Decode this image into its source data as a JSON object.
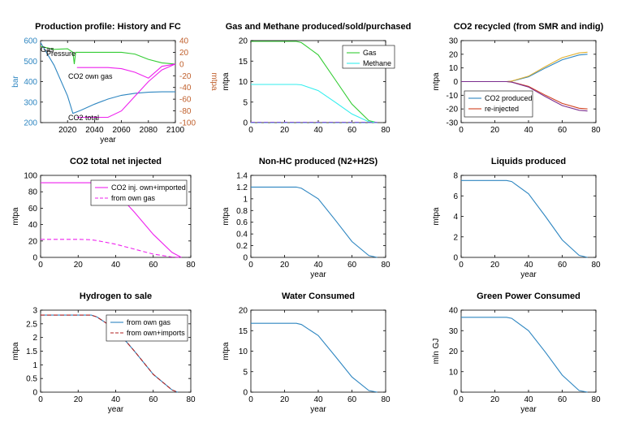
{
  "colors": {
    "blue": "#2e86c1",
    "orange": "#c0602d",
    "green": "#33cc33",
    "magenta": "#ee22ee",
    "cyan": "#33eeee",
    "gold": "#e0b030",
    "purple": "#7b2d8e",
    "red": "#d04020",
    "darkred": "#b22222"
  },
  "chart_data": [
    {
      "type": "line",
      "title": "Production profile: History and FC",
      "xlabel": "year",
      "ylabel": "bar",
      "ylabel_right": "mtpa",
      "xlim": [
        2000,
        2100
      ],
      "ylim": [
        200,
        600
      ],
      "ylim_right": [
        -100,
        40
      ],
      "xticks": [
        2020,
        2040,
        2060,
        2080,
        2100
      ],
      "yticks": [
        200,
        300,
        400,
        500,
        600
      ],
      "yticks_right": [
        -100,
        -80,
        -60,
        -40,
        -20,
        0,
        20,
        40
      ],
      "grid": false,
      "annotations": [
        "Gas",
        "Pressure",
        "CO2 own gas",
        "CO2 total"
      ],
      "series": [
        {
          "name": "Pressure",
          "axis": "left",
          "color": "blue",
          "x": [
            2000,
            2010,
            2020,
            2024,
            2030,
            2040,
            2050,
            2060,
            2070,
            2080,
            2090,
            2100
          ],
          "y": [
            590,
            480,
            330,
            245,
            260,
            290,
            315,
            333,
            343,
            348,
            350,
            350
          ]
        },
        {
          "name": "Gas",
          "axis": "right",
          "color": "green",
          "x": [
            2000,
            2010,
            2020,
            2024,
            2025,
            2026,
            2030,
            2040,
            2050,
            2060,
            2070,
            2080,
            2090,
            2100
          ],
          "y": [
            30,
            25,
            26,
            20,
            0,
            20,
            20,
            20,
            20,
            20,
            17,
            8,
            2,
            0
          ]
        },
        {
          "name": "CO2 own gas",
          "axis": "right",
          "color": "magenta",
          "x": [
            2027,
            2040,
            2050,
            2060,
            2070,
            2080,
            2090,
            2100
          ],
          "y": [
            -6,
            -6,
            -6,
            -8,
            -14,
            -24,
            -4,
            0
          ]
        },
        {
          "name": "CO2 total",
          "axis": "right",
          "color": "magenta",
          "x": [
            2027,
            2040,
            2050,
            2060,
            2070,
            2080,
            2090,
            2100
          ],
          "y": [
            -91,
            -91,
            -91,
            -80,
            -55,
            -30,
            -10,
            0
          ]
        }
      ]
    },
    {
      "type": "line",
      "title": "Gas and Methane produced/sold/purchased",
      "xlabel": "",
      "ylabel": "mtpa",
      "xlim": [
        0,
        80
      ],
      "ylim": [
        0,
        20
      ],
      "xticks": [
        0,
        20,
        40,
        60,
        80
      ],
      "yticks": [
        0,
        5,
        10,
        15,
        20
      ],
      "grid": false,
      "legend": "top-right",
      "series": [
        {
          "name": "Gas",
          "color": "green",
          "x": [
            0,
            27,
            30,
            40,
            50,
            60,
            70,
            75
          ],
          "y": [
            19.8,
            19.8,
            19.5,
            16.5,
            10.5,
            4.5,
            0.5,
            0
          ]
        },
        {
          "name": "Methane",
          "color": "cyan",
          "x": [
            0,
            27,
            30,
            40,
            50,
            60,
            70,
            75
          ],
          "y": [
            9.3,
            9.3,
            9.2,
            7.8,
            5.0,
            2.1,
            0.2,
            0
          ]
        },
        {
          "name": "",
          "color": "magenta",
          "dashed": true,
          "x": [
            0,
            75
          ],
          "y": [
            0.1,
            0.1
          ]
        },
        {
          "name": "",
          "color": "blue",
          "dashed": true,
          "x": [
            0,
            75
          ],
          "y": [
            0,
            0
          ]
        }
      ]
    },
    {
      "type": "line",
      "title": "CO2 recycled (from SMR and indig)",
      "xlabel": "",
      "ylabel": "mtpa",
      "xlim": [
        0,
        80
      ],
      "ylim": [
        -30,
        30
      ],
      "xticks": [
        0,
        20,
        40,
        60,
        80
      ],
      "yticks": [
        -30,
        -20,
        -10,
        0,
        10,
        20,
        30
      ],
      "grid": false,
      "legend": "bottom-left",
      "series": [
        {
          "name": "CO2 produced",
          "color": "blue",
          "x": [
            0,
            27,
            30,
            40,
            50,
            60,
            70,
            75
          ],
          "y": [
            0,
            0,
            0.3,
            3.5,
            10,
            16,
            19.5,
            20
          ]
        },
        {
          "name": "re-injected",
          "color": "red",
          "x": [
            0,
            27,
            30,
            40,
            50,
            60,
            70,
            75
          ],
          "y": [
            0,
            0,
            -0.3,
            -3.5,
            -10,
            -16,
            -19.5,
            -20
          ]
        },
        {
          "name": "",
          "color": "gold",
          "x": [
            0,
            27,
            30,
            40,
            50,
            60,
            70,
            75
          ],
          "y": [
            0,
            0,
            0.4,
            4,
            11,
            17.5,
            21,
            21.5
          ]
        },
        {
          "name": "",
          "color": "purple",
          "x": [
            0,
            27,
            30,
            40,
            50,
            60,
            70,
            75
          ],
          "y": [
            0,
            0,
            -0.4,
            -4,
            -11,
            -17.5,
            -21,
            -21.5
          ]
        }
      ]
    },
    {
      "type": "line",
      "title": "CO2 total net injected",
      "xlabel": "",
      "ylabel": "mtpa",
      "xlim": [
        0,
        80
      ],
      "ylim": [
        0,
        100
      ],
      "xticks": [
        0,
        20,
        40,
        60,
        80
      ],
      "yticks": [
        0,
        20,
        40,
        60,
        80,
        100
      ],
      "grid": false,
      "legend": "top-right",
      "series": [
        {
          "name": "CO2 inj. own+imported",
          "color": "magenta",
          "x": [
            0,
            27,
            30,
            40,
            50,
            60,
            70,
            75
          ],
          "y": [
            91,
            91,
            90,
            80,
            55,
            28,
            6,
            0
          ]
        },
        {
          "name": "from own gas",
          "color": "magenta",
          "dashed": true,
          "x": [
            0,
            20,
            27,
            30,
            40,
            50,
            60,
            70,
            75
          ],
          "y": [
            22,
            22,
            21.5,
            20.5,
            16,
            10,
            4,
            0.5,
            0
          ]
        }
      ]
    },
    {
      "type": "line",
      "title": "Non-HC produced (N2+H2S)",
      "xlabel": "year",
      "ylabel": "mtpa",
      "xlim": [
        0,
        80
      ],
      "ylim": [
        0,
        1.4
      ],
      "xticks": [
        0,
        20,
        40,
        60,
        80
      ],
      "yticks": [
        0,
        0.2,
        0.4,
        0.6,
        0.8,
        1,
        1.2,
        1.4
      ],
      "grid": false,
      "series": [
        {
          "name": "",
          "color": "blue",
          "x": [
            0,
            27,
            30,
            40,
            50,
            60,
            70,
            75
          ],
          "y": [
            1.2,
            1.2,
            1.18,
            1.0,
            0.64,
            0.27,
            0.03,
            0
          ]
        }
      ]
    },
    {
      "type": "line",
      "title": "Liquids produced",
      "xlabel": "year",
      "ylabel": "mtpa",
      "xlim": [
        0,
        80
      ],
      "ylim": [
        0,
        8
      ],
      "xticks": [
        0,
        20,
        40,
        60,
        80
      ],
      "yticks": [
        0,
        2,
        4,
        6,
        8
      ],
      "grid": false,
      "series": [
        {
          "name": "",
          "color": "blue",
          "x": [
            0,
            27,
            30,
            40,
            50,
            60,
            70,
            75
          ],
          "y": [
            7.5,
            7.5,
            7.4,
            6.2,
            4.0,
            1.7,
            0.2,
            0
          ]
        }
      ]
    },
    {
      "type": "line",
      "title": "Hydrogen to sale",
      "xlabel": "year",
      "ylabel": "mtpa",
      "xlim": [
        0,
        80
      ],
      "ylim": [
        0,
        3
      ],
      "xticks": [
        0,
        20,
        40,
        60,
        80
      ],
      "yticks": [
        0,
        0.5,
        1,
        1.5,
        2,
        2.5,
        3
      ],
      "grid": false,
      "legend": "top-right",
      "series": [
        {
          "name": "from own gas",
          "color": "blue",
          "x": [
            0,
            27,
            30,
            40,
            50,
            60,
            70,
            73
          ],
          "y": [
            2.82,
            2.82,
            2.75,
            2.3,
            1.5,
            0.65,
            0.08,
            0
          ]
        },
        {
          "name": "from own+imports",
          "color": "darkred",
          "dashed": true,
          "x": [
            0,
            27,
            30,
            40,
            50,
            60,
            70,
            73
          ],
          "y": [
            2.82,
            2.82,
            2.75,
            2.3,
            1.5,
            0.65,
            0.08,
            0
          ]
        }
      ]
    },
    {
      "type": "line",
      "title": "Water Consumed",
      "xlabel": "year",
      "ylabel": "mtpa",
      "xlim": [
        0,
        80
      ],
      "ylim": [
        0,
        20
      ],
      "xticks": [
        0,
        20,
        40,
        60,
        80
      ],
      "yticks": [
        0,
        5,
        10,
        15,
        20
      ],
      "grid": false,
      "series": [
        {
          "name": "",
          "color": "blue",
          "x": [
            0,
            27,
            30,
            40,
            50,
            60,
            70,
            75
          ],
          "y": [
            16.8,
            16.8,
            16.5,
            13.8,
            8.8,
            3.7,
            0.4,
            0
          ]
        }
      ]
    },
    {
      "type": "line",
      "title": "Green Power Consumed",
      "xlabel": "year",
      "ylabel": "mln GJ",
      "xlim": [
        0,
        80
      ],
      "ylim": [
        0,
        40
      ],
      "xticks": [
        0,
        20,
        40,
        60,
        80
      ],
      "yticks": [
        0,
        10,
        20,
        30,
        40
      ],
      "grid": false,
      "series": [
        {
          "name": "",
          "color": "blue",
          "x": [
            0,
            27,
            30,
            40,
            50,
            60,
            70,
            75
          ],
          "y": [
            36.5,
            36.5,
            36,
            30,
            19.5,
            8.3,
            0.8,
            0
          ]
        }
      ]
    }
  ]
}
